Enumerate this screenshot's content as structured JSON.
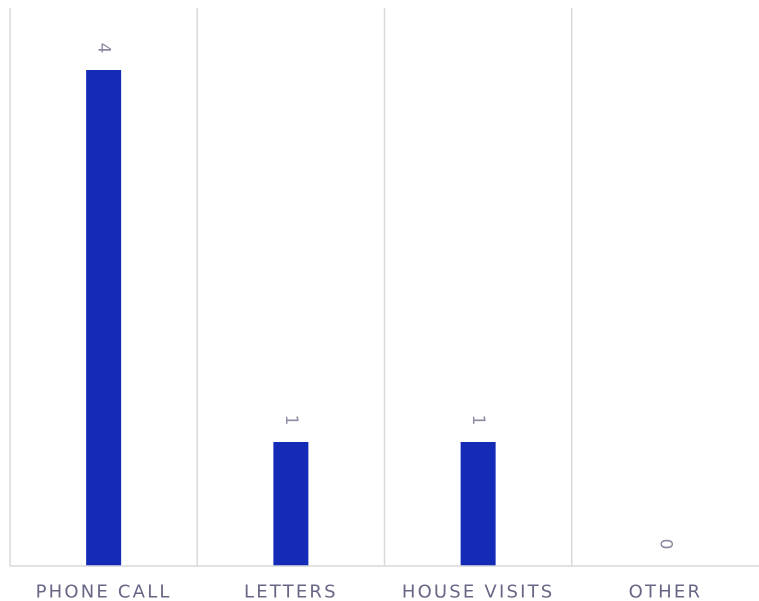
{
  "chart_data": {
    "type": "bar",
    "title": "",
    "xlabel": "",
    "ylabel": "",
    "categories": [
      "PHONE CALL",
      "LETTERS",
      "HOUSE VISITS",
      "OTHER"
    ],
    "values": [
      4,
      1,
      1,
      0
    ],
    "ylim": [
      0,
      4.5
    ],
    "grid": "vertical separators",
    "legend": "none",
    "data_labels": true,
    "colors": {
      "bar": "#132bb7",
      "grid": "#d9d9d9",
      "tick_label": "#676785",
      "data_label": "#8a8aa0"
    }
  }
}
